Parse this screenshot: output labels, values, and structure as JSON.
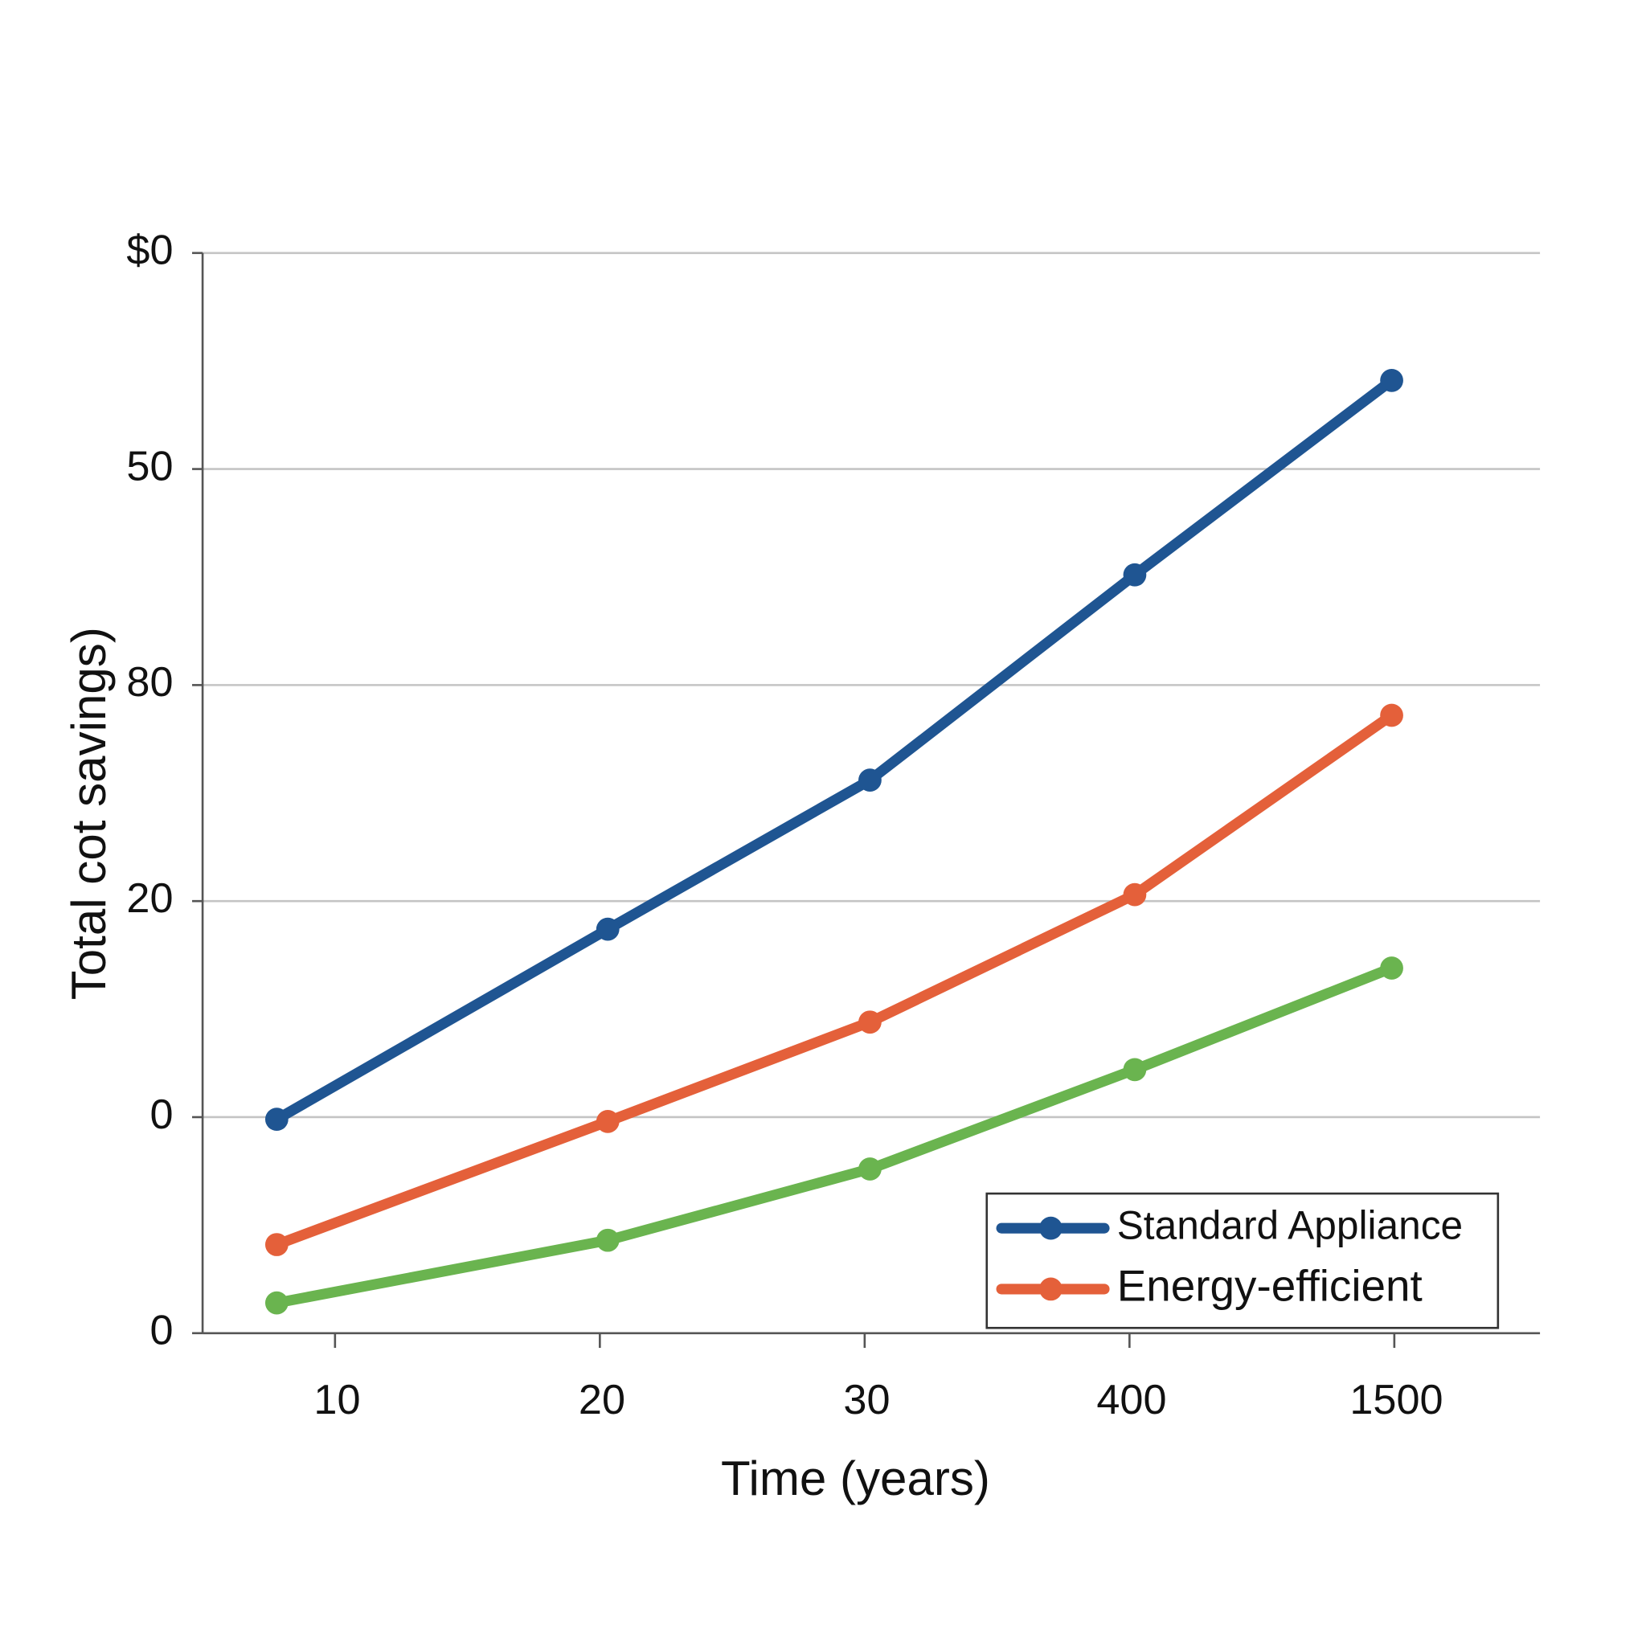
{
  "chart_data": {
    "type": "line",
    "x_label": "Time (years)",
    "y_label": "Total cot savings)",
    "x": [
      0.78,
      2.03,
      3.02,
      4.02,
      4.99
    ],
    "xlim": [
      0.5,
      5.55
    ],
    "xticks": [
      {
        "value": 1,
        "label": "10"
      },
      {
        "value": 2,
        "label": "20"
      },
      {
        "value": 3,
        "label": "30"
      },
      {
        "value": 4,
        "label": "400"
      },
      {
        "value": 5,
        "label": "1500"
      }
    ],
    "ylim": [
      0,
      5
    ],
    "yticks": [
      {
        "value": 0,
        "label": "0"
      },
      {
        "value": 1,
        "label": "0"
      },
      {
        "value": 2,
        "label": "20"
      },
      {
        "value": 3,
        "label": "80"
      },
      {
        "value": 4,
        "label": "50"
      },
      {
        "value": 5,
        "label": "$0"
      }
    ],
    "grid": true,
    "legend": "lower right",
    "series": [
      {
        "name": "Standard Appliance",
        "color": "#1f5592",
        "values": [
          0.99,
          1.87,
          2.56,
          3.51,
          4.41
        ]
      },
      {
        "name": "Energy-efficient",
        "color": "#e4603a",
        "values": [
          0.41,
          0.98,
          1.44,
          2.03,
          2.86
        ]
      },
      {
        "color": "#6ab44f",
        "values": [
          0.14,
          0.43,
          0.76,
          1.22,
          1.69
        ]
      }
    ]
  }
}
